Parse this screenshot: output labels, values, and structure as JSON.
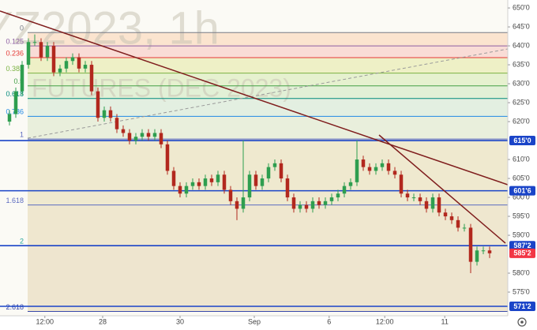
{
  "chart_data": {
    "type": "candlestick",
    "watermark": [
      "YZ2023, 1h",
      "FUTURES (DEC 2023)"
    ],
    "open": [
      620,
      622,
      628,
      635,
      641,
      641,
      637,
      640,
      633,
      634,
      636,
      637,
      634,
      635,
      628,
      621,
      623,
      621,
      618,
      617,
      615,
      616,
      617,
      616,
      617,
      614,
      607,
      603,
      601,
      603,
      604,
      603,
      605,
      604,
      606,
      602,
      599,
      597,
      600,
      606,
      603,
      605,
      608,
      609,
      605,
      600,
      597,
      598,
      597,
      599,
      598,
      599,
      600,
      601,
      603,
      604,
      610,
      608,
      607,
      608,
      609,
      607,
      606,
      601,
      600,
      600,
      599,
      597,
      600,
      596,
      595,
      594,
      592,
      592,
      583,
      586,
      586
    ],
    "high": [
      623,
      629,
      636,
      642,
      643,
      642,
      641,
      641,
      635,
      637,
      638,
      638,
      636,
      636,
      629,
      624,
      624,
      622,
      619,
      618,
      617,
      618,
      618,
      618,
      618,
      615,
      608,
      604,
      604,
      605,
      605,
      606,
      606,
      607,
      607,
      603,
      600,
      615,
      607,
      607,
      606,
      609,
      610,
      610,
      606,
      601,
      599,
      599,
      600,
      600,
      600,
      601,
      602,
      604,
      605,
      615,
      611,
      609,
      609,
      610,
      610,
      608,
      607,
      602,
      601,
      601,
      600,
      601,
      601,
      597,
      596,
      595,
      593,
      593,
      587,
      587,
      587
    ],
    "low": [
      619,
      621,
      627,
      634,
      640,
      636,
      636,
      632,
      632,
      633,
      635,
      633,
      633,
      627,
      620,
      620,
      620,
      617,
      616,
      614,
      614,
      615,
      615,
      615,
      613,
      606,
      602,
      600,
      600,
      602,
      602,
      602,
      603,
      603,
      601,
      598,
      594,
      596,
      599,
      602,
      602,
      604,
      607,
      604,
      599,
      596,
      596,
      596,
      596,
      597,
      597,
      598,
      599,
      600,
      602,
      603,
      607,
      606,
      606,
      607,
      606,
      605,
      600,
      599,
      599,
      598,
      596,
      596,
      595,
      594,
      593,
      591,
      591,
      580,
      582,
      585,
      584
    ],
    "close": [
      622,
      628,
      635,
      641,
      641,
      637,
      640,
      633,
      634,
      636,
      637,
      634,
      635,
      628,
      621,
      623,
      621,
      618,
      617,
      615,
      616,
      617,
      616,
      617,
      614,
      607,
      603,
      601,
      603,
      604,
      603,
      605,
      604,
      606,
      602,
      599,
      597,
      600,
      606,
      603,
      605,
      608,
      609,
      605,
      600,
      597,
      598,
      597,
      599,
      598,
      599,
      600,
      601,
      603,
      604,
      610,
      608,
      607,
      608,
      609,
      607,
      606,
      601,
      600,
      600,
      599,
      597,
      600,
      596,
      595,
      594,
      592,
      592,
      583,
      586,
      586,
      585.25
    ],
    "up_color": "#2e9e4f",
    "down_color": "#b2281e",
    "xlim": [
      -1.5,
      78.875
    ],
    "ylim": [
      568.75,
      652.1
    ],
    "xticks": [
      {
        "value": 5.6,
        "label": "12:00"
      },
      {
        "value": 14.75,
        "label": "28"
      },
      {
        "value": 27,
        "label": "30"
      },
      {
        "value": 38.75,
        "label": "Sep"
      },
      {
        "value": 50.6,
        "label": "6"
      },
      {
        "value": 59.4,
        "label": "12:00"
      },
      {
        "value": 68.9,
        "label": "11"
      }
    ],
    "yticks": [
      {
        "value": 650,
        "label": "650'0"
      },
      {
        "value": 645,
        "label": "645'0"
      },
      {
        "value": 640,
        "label": "640'0"
      },
      {
        "value": 635,
        "label": "635'0"
      },
      {
        "value": 630,
        "label": "630'0"
      },
      {
        "value": 625,
        "label": "625'0"
      },
      {
        "value": 620,
        "label": "620'0"
      },
      {
        "value": 610,
        "label": "610'0"
      },
      {
        "value": 605,
        "label": "605'0"
      },
      {
        "value": 600,
        "label": "600'0"
      },
      {
        "value": 595,
        "label": "595'0"
      },
      {
        "value": 590,
        "label": "590'0"
      },
      {
        "value": 580,
        "label": "580'0"
      },
      {
        "value": 575,
        "label": "575'0"
      }
    ],
    "fib_levels": [
      {
        "label": "0",
        "price": 643.5,
        "color": "#787b86",
        "fill": "#fbe4cf"
      },
      {
        "label": "0.125",
        "price": 640.0,
        "color": "#8e5ea2",
        "fill": "#f9dcd6"
      },
      {
        "label": "0.236",
        "price": 636.9,
        "color": "#e53935",
        "fill": "#eef0c6"
      },
      {
        "label": "0.382",
        "price": 632.8,
        "color": "#7cb342",
        "fill": "#e6f1cf"
      },
      {
        "label": "0.5",
        "price": 629.45,
        "color": "#43a047",
        "fill": "#e2f0d6"
      },
      {
        "label": "0.618",
        "price": 626.1,
        "color": "#00897b",
        "fill": "#e3efe1"
      },
      {
        "label": "0.786",
        "price": 621.4,
        "color": "#1e88e5",
        "fill": "#e9efdc"
      },
      {
        "label": "1",
        "price": 615.4,
        "color": "#5c6bc0",
        "fill": "#efe9cf"
      },
      {
        "label": "1.618",
        "price": 598.0,
        "color": "#5c6bc0",
        "fill": "#efe7cf"
      },
      {
        "label": "2",
        "price": 587.3,
        "color": "#26a69a",
        "fill": "#eee5cf"
      },
      {
        "label": "2.618",
        "price": 569.9,
        "color": "#3949ab"
      }
    ],
    "price_lines": [
      {
        "value": 615,
        "label": "615'0",
        "color": "#1a44c8"
      },
      {
        "value": 601.75,
        "label": "601'6",
        "color": "#1a44c8"
      },
      {
        "value": 587.25,
        "label": "587'2",
        "color": "#1a44c8"
      },
      {
        "value": 571.25,
        "label": "571'2",
        "color": "#1a44c8"
      }
    ],
    "last_price": {
      "value": 585.25,
      "label": "585'2",
      "color": "#f23645"
    }
  }
}
